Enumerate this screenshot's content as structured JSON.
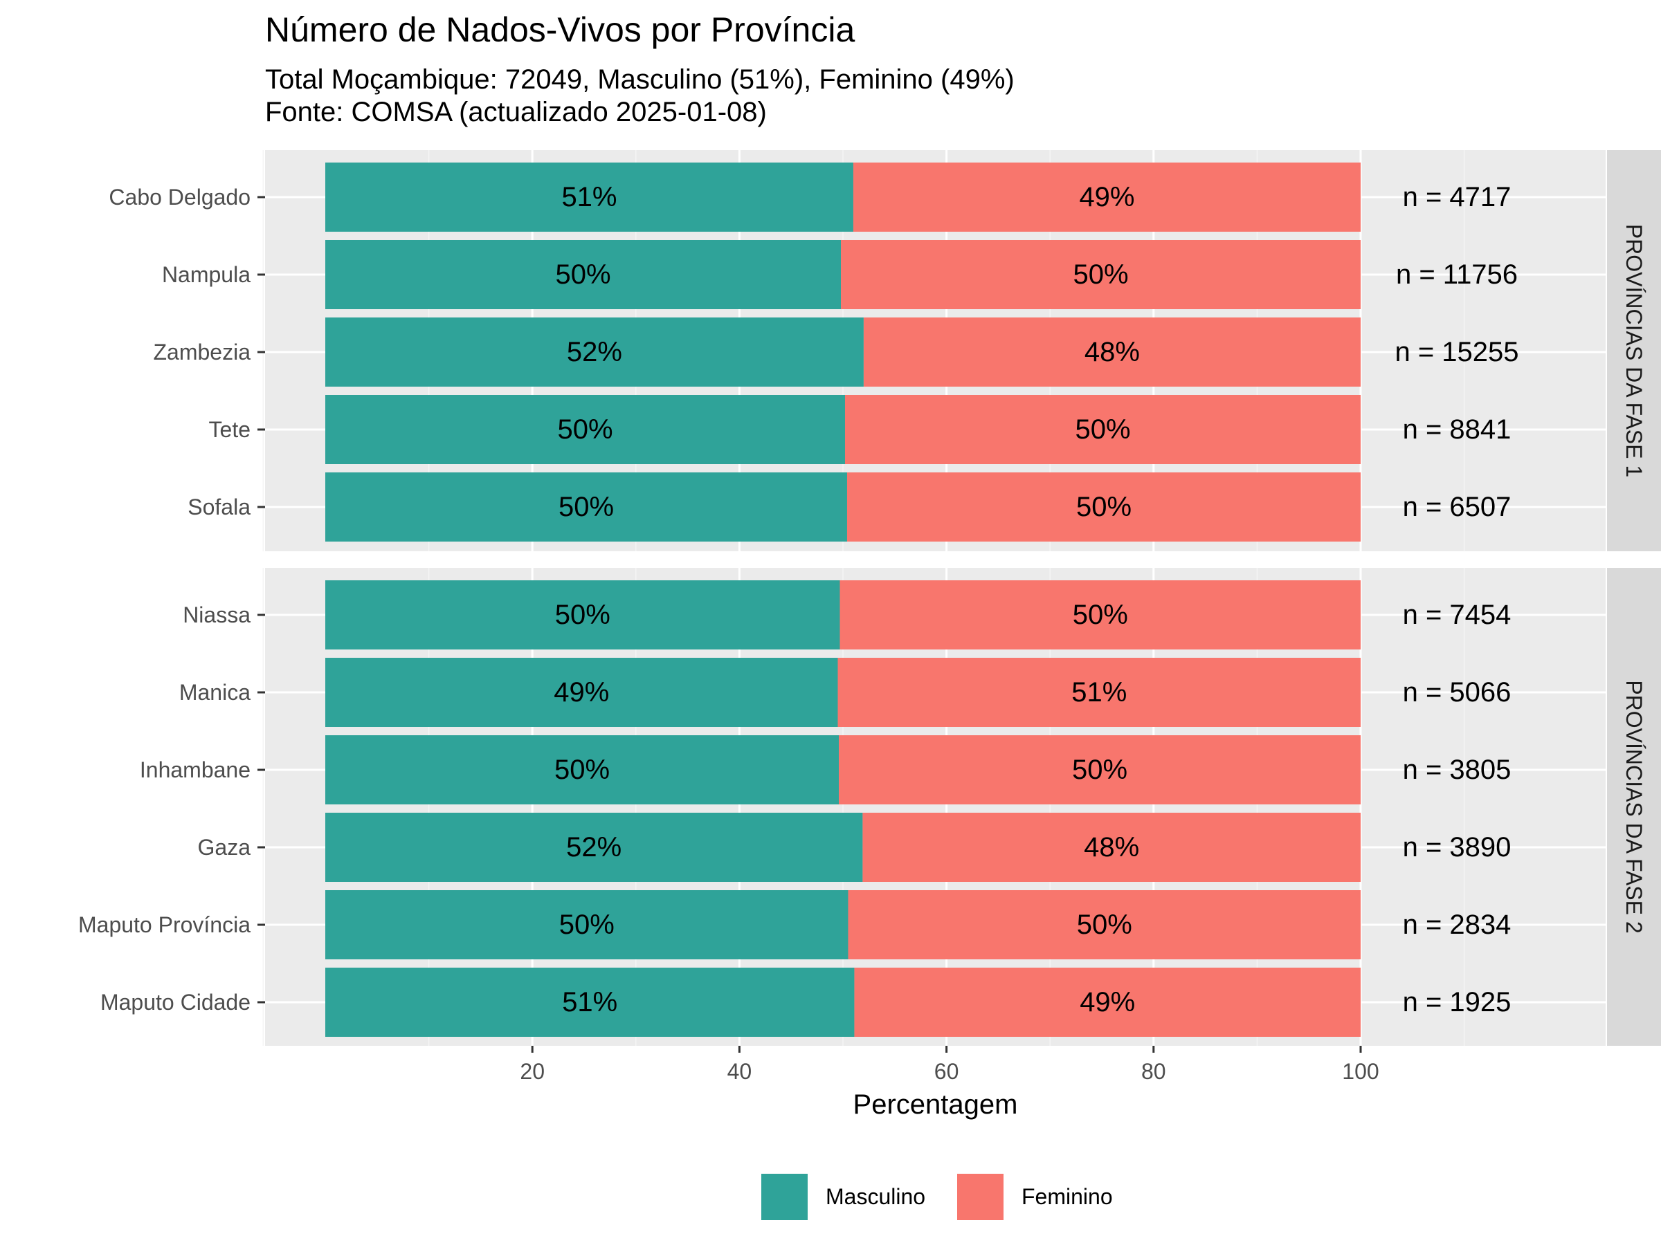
{
  "chart_data": {
    "type": "bar",
    "orientation": "horizontal",
    "stacked": true,
    "title": "Número de Nados-Vivos por Província",
    "subtitle": [
      "Total Moçambique: 72049, Masculino (51%), Feminino (49%)",
      "Fonte: COMSA (actualizado 2025-01-08)"
    ],
    "xlabel": "Percentagem",
    "xlim": [
      -6,
      120
    ],
    "x_ticks": [
      20,
      40,
      60,
      80,
      100
    ],
    "grid": true,
    "legend_position": "bottom",
    "series": [
      {
        "name": "Masculino",
        "color": "#2FA399"
      },
      {
        "name": "Feminino",
        "color": "#F8766D"
      }
    ],
    "facets": [
      {
        "label": "PROVÍNCIAS  DA  FASE  1",
        "rows": [
          {
            "category": "Cabo Delgado",
            "masculino": 51,
            "feminino": 49,
            "masc_label": "51%",
            "fem_label": "49%",
            "n_label": "n = 4717"
          },
          {
            "category": "Nampula",
            "masculino": 49.8,
            "feminino": 50.2,
            "masc_label": "50%",
            "fem_label": "50%",
            "n_label": "n = 11756"
          },
          {
            "category": "Zambezia",
            "masculino": 52,
            "feminino": 48,
            "masc_label": "52%",
            "fem_label": "48%",
            "n_label": "n = 15255"
          },
          {
            "category": "Tete",
            "masculino": 50.2,
            "feminino": 49.8,
            "masc_label": "50%",
            "fem_label": "50%",
            "n_label": "n = 8841"
          },
          {
            "category": "Sofala",
            "masculino": 50.4,
            "feminino": 49.6,
            "masc_label": "50%",
            "fem_label": "50%",
            "n_label": "n = 6507"
          }
        ]
      },
      {
        "label": "PROVÍNCIAS  DA  FASE  2",
        "rows": [
          {
            "category": "Niassa",
            "masculino": 49.7,
            "feminino": 50.3,
            "masc_label": "50%",
            "fem_label": "50%",
            "n_label": "n = 7454"
          },
          {
            "category": "Manica",
            "masculino": 49.5,
            "feminino": 50.5,
            "masc_label": "49%",
            "fem_label": "51%",
            "n_label": "n = 5066"
          },
          {
            "category": "Inhambane",
            "masculino": 49.6,
            "feminino": 50.4,
            "masc_label": "50%",
            "fem_label": "50%",
            "n_label": "n = 3805"
          },
          {
            "category": "Gaza",
            "masculino": 51.9,
            "feminino": 48.1,
            "masc_label": "52%",
            "fem_label": "48%",
            "n_label": "n = 3890"
          },
          {
            "category": "Maputo Província",
            "masculino": 50.5,
            "feminino": 49.5,
            "masc_label": "50%",
            "fem_label": "50%",
            "n_label": "n = 2834"
          },
          {
            "category": "Maputo Cidade",
            "masculino": 51.1,
            "feminino": 48.9,
            "masc_label": "51%",
            "fem_label": "49%",
            "n_label": "n = 1925"
          }
        ]
      }
    ]
  }
}
